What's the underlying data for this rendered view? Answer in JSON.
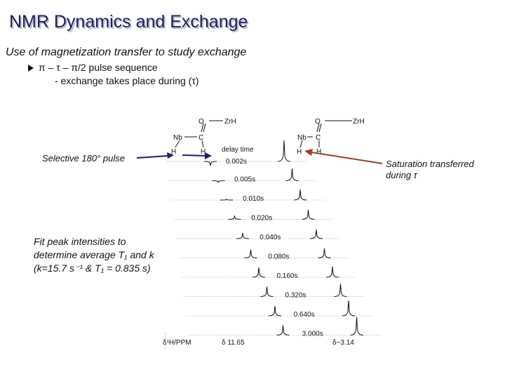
{
  "title": "NMR Dynamics and Exchange",
  "subtitle": "Use of magnetization transfer to study exchange",
  "bullet": "π – τ – π/2 pulse sequence",
  "sub_bullet": "- exchange takes place during (τ)",
  "figure": {
    "structure_left": {
      "atoms": [
        "O",
        "ZrH",
        "Nb",
        "C",
        "H",
        "H"
      ]
    },
    "structure_right": {
      "atoms": [
        "O",
        "ZrH",
        "Nb",
        "C",
        "H",
        "H"
      ]
    },
    "delay_header": "delay time",
    "delays": [
      "0.002s",
      "0.005s",
      "0.010s",
      "0.020s",
      "0.040s",
      "0.080s",
      "0.160s",
      "0.320s",
      "0.640s",
      "3.000s"
    ],
    "axis_label": "δ¹H/PPM",
    "peak_left": "δ 11.65",
    "peak_right": "δ−3.14"
  },
  "annotations": {
    "selective": "Selective 180° pulse",
    "saturation": [
      "Saturation transferred",
      "during τ"
    ],
    "fit": [
      "Fit peak intensities to",
      "determine average T₁ and k",
      "(k=15.7 s⁻¹ & T₁ = 0.835 s)"
    ]
  }
}
